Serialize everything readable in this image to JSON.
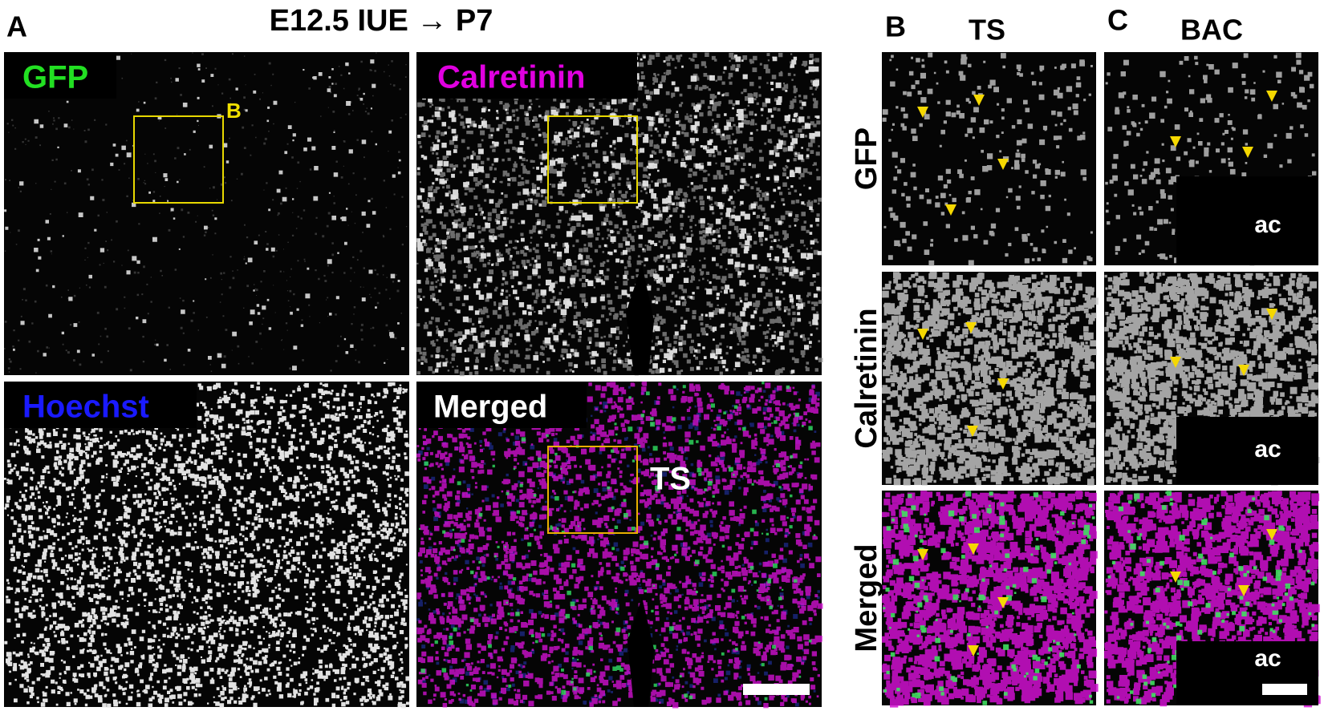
{
  "figure_title": "E12.5 IUE → P7",
  "panel_letters": {
    "a": "A",
    "b": "B",
    "c": "C"
  },
  "column_titles": {
    "b": "TS",
    "c": "BAC"
  },
  "panel_a": {
    "labels": [
      "GFP",
      "Calretinin",
      "Hoechst",
      "Merged"
    ],
    "inset_label": "B",
    "region_label": "TS"
  },
  "row_labels": [
    "GFP",
    "Calretinin",
    "Merged"
  ],
  "structure_labels": [
    "ac",
    "ac",
    "ac"
  ]
}
